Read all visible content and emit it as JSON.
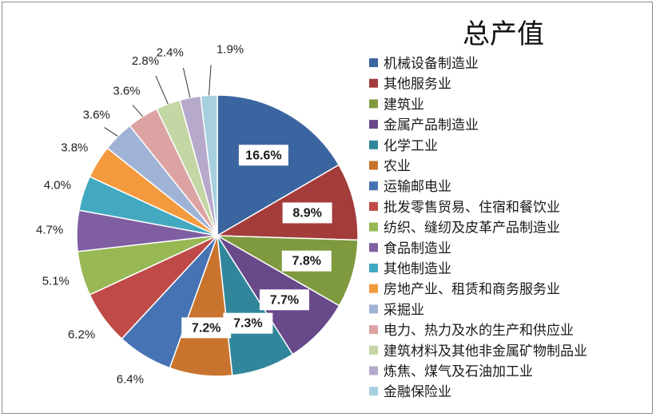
{
  "chart_data": {
    "type": "pie",
    "title": "总产值",
    "legend_position": "right",
    "categories": [
      "机械设备制造业",
      "其他服务业",
      "建筑业",
      "金属产品制造业",
      "化学工业",
      "农业",
      "运输邮电业",
      "批发零售贸易、住宿和餐饮业",
      "纺织、缝纫及皮革产品制造业",
      "食品制造业",
      "其他制造业",
      "房地产业、租赁和商务服务业",
      "采掘业",
      "电力、热力及水的生产和供应业",
      "建筑材料及其他非金属矿物制品业",
      "炼焦、煤气及石油加工业",
      "金融保险业"
    ],
    "values": [
      16.6,
      8.9,
      7.8,
      7.7,
      7.3,
      7.2,
      6.4,
      6.2,
      5.1,
      4.7,
      4.0,
      3.8,
      3.6,
      3.6,
      2.8,
      2.4,
      1.9
    ],
    "labels": [
      "16.6%",
      "8.9%",
      "7.8%",
      "7.7%",
      "7.3%",
      "7.2%",
      "6.4%",
      "6.2%",
      "5.1%",
      "4.7%",
      "4.0%",
      "3.8%",
      "3.6%",
      "3.6%",
      "2.8%",
      "2.4%",
      "1.9%"
    ],
    "colors": [
      "#3b65a0",
      "#a33c3a",
      "#7f9a3e",
      "#68498a",
      "#31869b",
      "#c8742f",
      "#4673b4",
      "#bf4a47",
      "#97b853",
      "#7f5fa2",
      "#43a9c0",
      "#f39a3f",
      "#9fb3d6",
      "#dca3a2",
      "#c3d6a4",
      "#b7a9cc",
      "#a6d0df"
    ]
  }
}
